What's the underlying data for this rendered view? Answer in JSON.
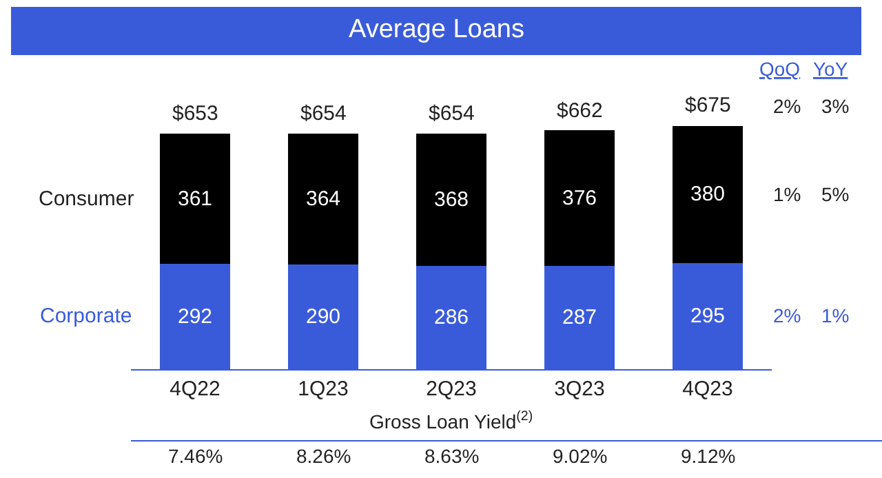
{
  "chart_data": {
    "type": "bar",
    "stacked": true,
    "title": "Average Loans",
    "categories": [
      "4Q22",
      "1Q23",
      "2Q23",
      "3Q23",
      "4Q23"
    ],
    "series": [
      {
        "name": "Corporate",
        "color": "#3a5bd9",
        "values": [
          292,
          290,
          286,
          287,
          295
        ]
      },
      {
        "name": "Consumer",
        "color": "#000000",
        "values": [
          361,
          364,
          368,
          376,
          380
        ]
      }
    ],
    "data_labels": true,
    "totals": [
      "$653",
      "$654",
      "$654",
      "$662",
      "$675"
    ],
    "legend": false,
    "annotations": [
      "QoQ",
      "YoY",
      "2%",
      "3%",
      "1%",
      "5%",
      "2%",
      "1%",
      "Gross Loan Yield$^{(2)}$",
      "7.46%",
      "8.26%",
      "8.63%",
      "9.02%",
      "9.12%"
    ]
  }
}
